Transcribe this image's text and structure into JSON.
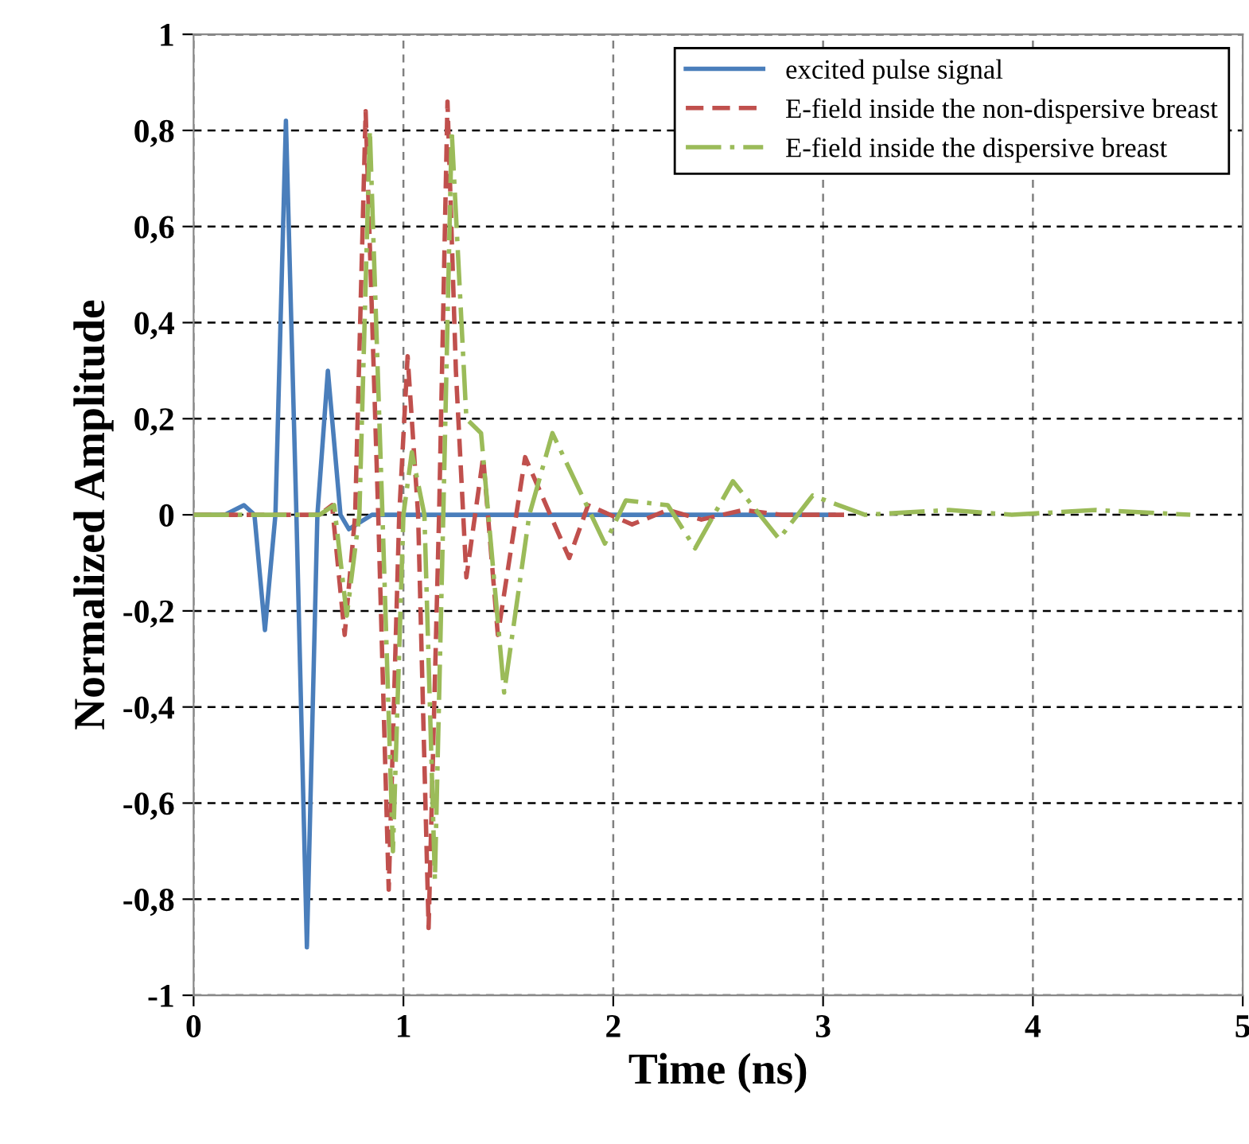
{
  "chart_data": {
    "type": "line",
    "xlabel": "Time (ns)",
    "ylabel": "Normalized Amplitude",
    "xlim": [
      0,
      5
    ],
    "xticks": [
      0,
      1,
      2,
      3,
      4,
      5
    ],
    "ylim": [
      -1,
      1
    ],
    "yticks": [
      {
        "value": -1,
        "label": "-1"
      },
      {
        "value": -0.8,
        "label": "-0,8"
      },
      {
        "value": -0.6,
        "label": "-0,6"
      },
      {
        "value": -0.4,
        "label": "-0,4"
      },
      {
        "value": -0.2,
        "label": "-0,2"
      },
      {
        "value": 0,
        "label": "0"
      },
      {
        "value": 0.2,
        "label": "0,2"
      },
      {
        "value": 0.4,
        "label": "0,4"
      },
      {
        "value": 0.6,
        "label": "0,6"
      },
      {
        "value": 0.8,
        "label": "0,8"
      },
      {
        "value": 1,
        "label": "1"
      }
    ],
    "grid": true,
    "legend": "top right",
    "marker": "none",
    "series": [
      {
        "name": "excited pulse signal",
        "color": "#4a7ebb",
        "line_style": "solid",
        "x": [
          0,
          0.15,
          0.24,
          0.29,
          0.34,
          0.39,
          0.44,
          0.49,
          0.54,
          0.59,
          0.64,
          0.7,
          0.74,
          0.85,
          3.05
        ],
        "values": [
          0,
          0,
          0.02,
          0,
          -0.24,
          0,
          0.82,
          0,
          -0.9,
          0,
          0.3,
          0,
          -0.03,
          0,
          0
        ]
      },
      {
        "name": "E-field inside the non-dispersive breast",
        "color": "#c0504d",
        "line_style": "dashed",
        "x": [
          0,
          0.6,
          0.66,
          0.72,
          0.77,
          0.82,
          0.88,
          0.93,
          0.98,
          1.02,
          1.07,
          1.12,
          1.17,
          1.21,
          1.25,
          1.3,
          1.38,
          1.45,
          1.58,
          1.65,
          1.79,
          1.88,
          2.09,
          2.26,
          2.42,
          2.62,
          2.8,
          3.1
        ],
        "values": [
          0,
          0,
          0.02,
          -0.25,
          0,
          0.84,
          0,
          -0.78,
          0,
          0.33,
          0,
          -0.86,
          0,
          0.86,
          0.3,
          -0.13,
          0.12,
          -0.25,
          0.12,
          0.05,
          -0.09,
          0.02,
          -0.02,
          0.01,
          -0.01,
          0.01,
          0,
          0
        ]
      },
      {
        "name": "E-field inside the dispersive breast",
        "color": "#9bbb59",
        "line_style": "dashdot",
        "x": [
          0,
          0.6,
          0.67,
          0.73,
          0.79,
          0.84,
          0.9,
          0.95,
          1.0,
          1.04,
          1.1,
          1.15,
          1.19,
          1.23,
          1.3,
          1.37,
          1.48,
          1.6,
          1.71,
          1.96,
          2.06,
          2.26,
          2.39,
          2.57,
          2.79,
          2.95,
          3.2,
          3.6,
          3.9,
          4.3,
          4.75
        ],
        "values": [
          0,
          0,
          0.02,
          -0.21,
          0,
          0.8,
          0,
          -0.7,
          0,
          0.13,
          0,
          -0.76,
          0,
          0.8,
          0.2,
          0.17,
          -0.37,
          0,
          0.17,
          -0.06,
          0.03,
          0.02,
          -0.07,
          0.07,
          -0.05,
          0.04,
          0,
          0.01,
          0,
          0.01,
          0
        ]
      }
    ]
  }
}
